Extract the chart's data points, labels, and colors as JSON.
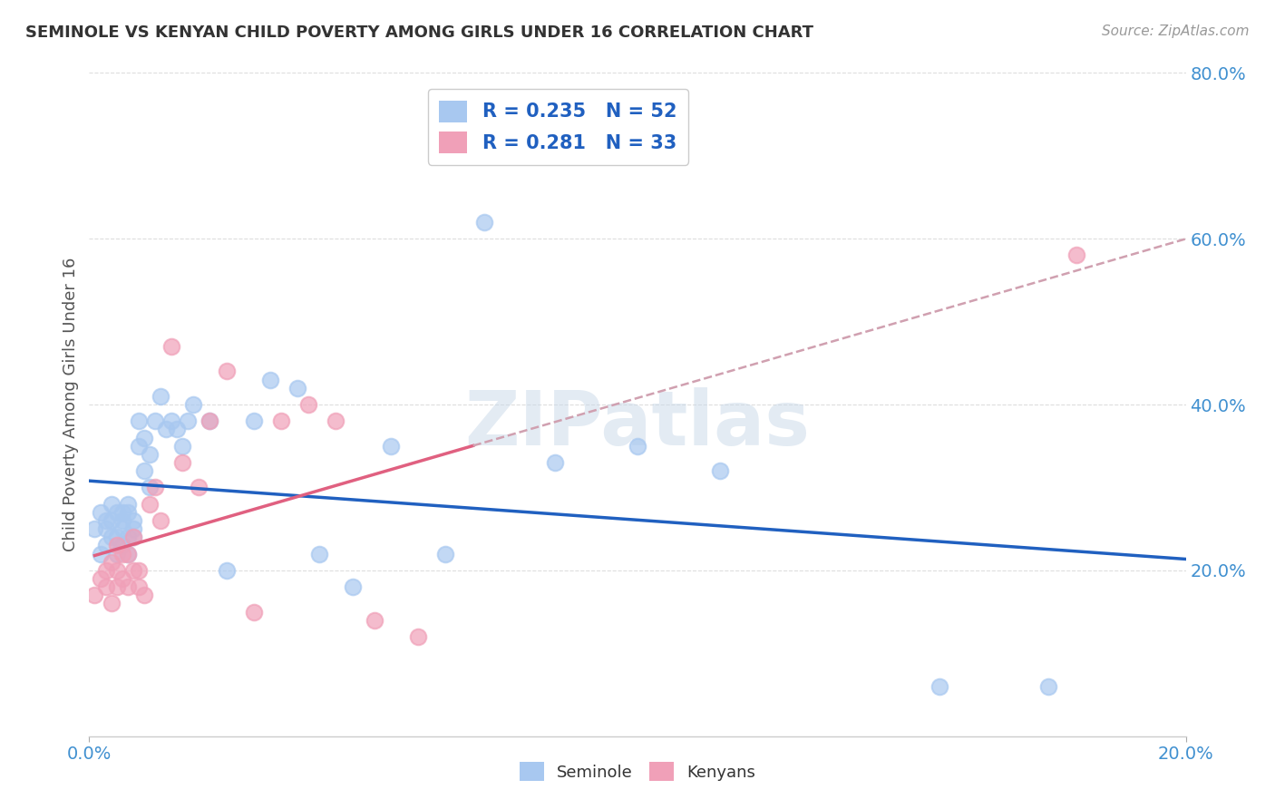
{
  "title": "SEMINOLE VS KENYAN CHILD POVERTY AMONG GIRLS UNDER 16 CORRELATION CHART",
  "source": "Source: ZipAtlas.com",
  "ylabel": "Child Poverty Among Girls Under 16",
  "seminole_R": 0.235,
  "seminole_N": 52,
  "kenyans_R": 0.281,
  "kenyans_N": 33,
  "seminole_color": "#A8C8F0",
  "kenyans_color": "#F0A0B8",
  "seminole_line_color": "#2060C0",
  "kenyans_line_color": "#E06080",
  "kenyans_dash_color": "#D0A0B0",
  "watermark_text": "ZIPatlas",
  "xlim": [
    0.0,
    0.2
  ],
  "ylim": [
    0.0,
    0.8
  ],
  "xtick_positions": [
    0.0,
    0.2
  ],
  "xtick_labels": [
    "0.0%",
    "20.0%"
  ],
  "ytick_positions": [
    0.0,
    0.2,
    0.4,
    0.6,
    0.8
  ],
  "ytick_labels": [
    "",
    "20.0%",
    "40.0%",
    "60.0%",
    "80.0%"
  ],
  "background_color": "#FFFFFF",
  "grid_color": "#DDDDDD",
  "title_color": "#333333",
  "source_color": "#999999",
  "axis_label_color": "#555555",
  "tick_color": "#4090D0",
  "legend_text_color": "#2060C0",
  "seminole_x": [
    0.001,
    0.002,
    0.002,
    0.003,
    0.003,
    0.003,
    0.004,
    0.004,
    0.004,
    0.005,
    0.005,
    0.005,
    0.006,
    0.006,
    0.006,
    0.006,
    0.007,
    0.007,
    0.007,
    0.007,
    0.008,
    0.008,
    0.008,
    0.009,
    0.009,
    0.01,
    0.01,
    0.011,
    0.011,
    0.012,
    0.013,
    0.014,
    0.015,
    0.016,
    0.017,
    0.018,
    0.019,
    0.022,
    0.025,
    0.03,
    0.033,
    0.038,
    0.042,
    0.048,
    0.055,
    0.065,
    0.072,
    0.085,
    0.1,
    0.115,
    0.155,
    0.175
  ],
  "seminole_y": [
    0.25,
    0.27,
    0.22,
    0.26,
    0.23,
    0.25,
    0.24,
    0.28,
    0.26,
    0.24,
    0.22,
    0.27,
    0.26,
    0.23,
    0.25,
    0.27,
    0.24,
    0.22,
    0.28,
    0.27,
    0.26,
    0.24,
    0.25,
    0.35,
    0.38,
    0.32,
    0.36,
    0.34,
    0.3,
    0.38,
    0.41,
    0.37,
    0.38,
    0.37,
    0.35,
    0.38,
    0.4,
    0.38,
    0.2,
    0.38,
    0.43,
    0.42,
    0.22,
    0.18,
    0.35,
    0.22,
    0.62,
    0.33,
    0.35,
    0.32,
    0.06,
    0.06
  ],
  "kenyans_x": [
    0.001,
    0.002,
    0.003,
    0.003,
    0.004,
    0.004,
    0.005,
    0.005,
    0.005,
    0.006,
    0.006,
    0.007,
    0.007,
    0.008,
    0.008,
    0.009,
    0.009,
    0.01,
    0.011,
    0.012,
    0.013,
    0.015,
    0.017,
    0.02,
    0.022,
    0.025,
    0.03,
    0.035,
    0.04,
    0.045,
    0.052,
    0.06,
    0.18
  ],
  "kenyans_y": [
    0.17,
    0.19,
    0.18,
    0.2,
    0.16,
    0.21,
    0.18,
    0.2,
    0.23,
    0.19,
    0.22,
    0.18,
    0.22,
    0.2,
    0.24,
    0.18,
    0.2,
    0.17,
    0.28,
    0.3,
    0.26,
    0.47,
    0.33,
    0.3,
    0.38,
    0.44,
    0.15,
    0.38,
    0.4,
    0.38,
    0.14,
    0.12,
    0.58
  ]
}
